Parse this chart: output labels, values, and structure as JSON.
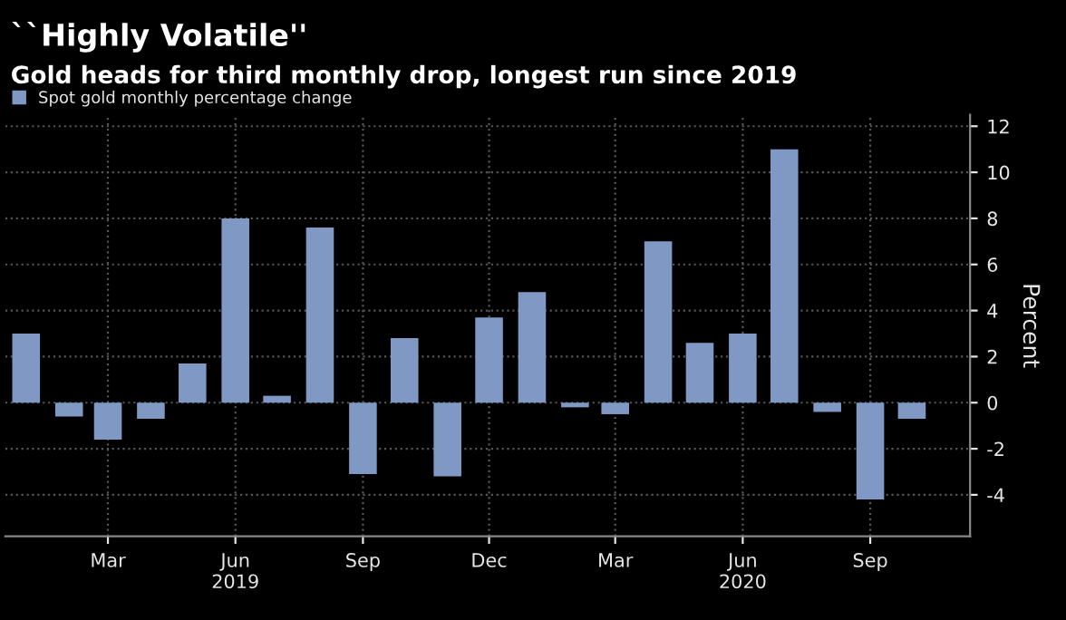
{
  "chart_data": {
    "type": "bar",
    "title": "``Highly Volatile''",
    "subtitle": "Gold heads for third monthly drop, longest run since 2019",
    "x": [
      "2019-01",
      "2019-02",
      "2019-03",
      "2019-04",
      "2019-05",
      "2019-06",
      "2019-07",
      "2019-08",
      "2019-09",
      "2019-10",
      "2019-11",
      "2019-12",
      "2020-01",
      "2020-02",
      "2020-03",
      "2020-04",
      "2020-05",
      "2020-06",
      "2020-07",
      "2020-08",
      "2020-09",
      "2020-10"
    ],
    "series": [
      {
        "name": "Spot gold monthly percentage change",
        "color": "#7f98c4",
        "values": [
          3.0,
          -0.6,
          -1.6,
          -0.7,
          1.7,
          8.0,
          0.3,
          7.6,
          -3.1,
          2.8,
          -3.2,
          3.7,
          4.8,
          -0.2,
          -0.5,
          7.0,
          2.6,
          3.0,
          11.0,
          -0.4,
          -4.2,
          -0.7
        ]
      }
    ],
    "ylabel": "Percent",
    "ylim": [
      -5.8,
      12.5
    ],
    "yticks": [
      -4,
      -2,
      0,
      2,
      4,
      6,
      8,
      10,
      12
    ],
    "xlim": [
      "2018-12-17",
      "2020-11-12"
    ],
    "xticks": [
      {
        "value": "2019-03",
        "label": "Mar"
      },
      {
        "value": "2019-06",
        "label": "Jun\n2019"
      },
      {
        "value": "2019-09",
        "label": "Sep"
      },
      {
        "value": "2019-12",
        "label": "Dec"
      },
      {
        "value": "2020-03",
        "label": "Mar"
      },
      {
        "value": "2020-06",
        "label": "Jun\n2020"
      },
      {
        "value": "2020-09",
        "label": "Sep"
      }
    ],
    "grid": true,
    "legend": "top left"
  }
}
